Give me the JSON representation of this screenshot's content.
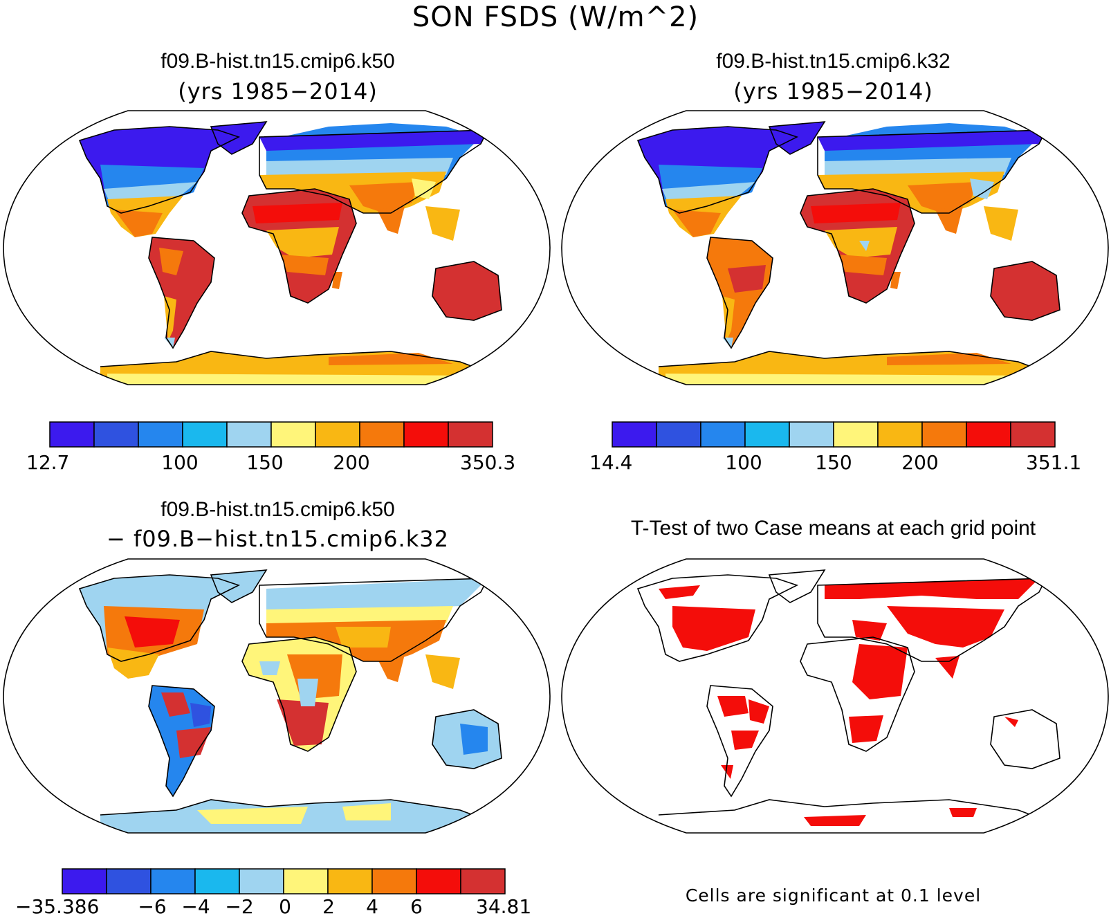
{
  "figure_title": "SON FSDS (W/m^2)",
  "palette": [
    "#3c1aee",
    "#2f52e0",
    "#2586ee",
    "#1ab8ee",
    "#9fd4f0",
    "#fff57a",
    "#f9b713",
    "#f5790c",
    "#f40d0a",
    "#d43131"
  ],
  "panels": {
    "top_left": {
      "title": "f09.B-hist.tn15.cmip6.k50",
      "subtitle": "(yrs 1985−2014)",
      "colorbar_ticks": [
        "12.7",
        "100",
        "150",
        "200",
        "350.3"
      ]
    },
    "top_right": {
      "title": "f09.B-hist.tn15.cmip6.k32",
      "subtitle": "(yrs 1985−2014)",
      "colorbar_ticks": [
        "14.4",
        "100",
        "150",
        "200",
        "351.1"
      ]
    },
    "bottom_left": {
      "title": "f09.B-hist.tn15.cmip6.k50",
      "subtitle": "− f09.B−hist.tn15.cmip6.k32",
      "colorbar_ticks": [
        "−35.386",
        "−6",
        "−4",
        "−2",
        "0",
        "2",
        "4",
        "6",
        "34.81"
      ]
    },
    "bottom_right": {
      "title": "T-Test of two Case means at each grid point",
      "footnote": "Cells are significant at 0.1 level",
      "significant_color": "#f40d0a"
    }
  }
}
